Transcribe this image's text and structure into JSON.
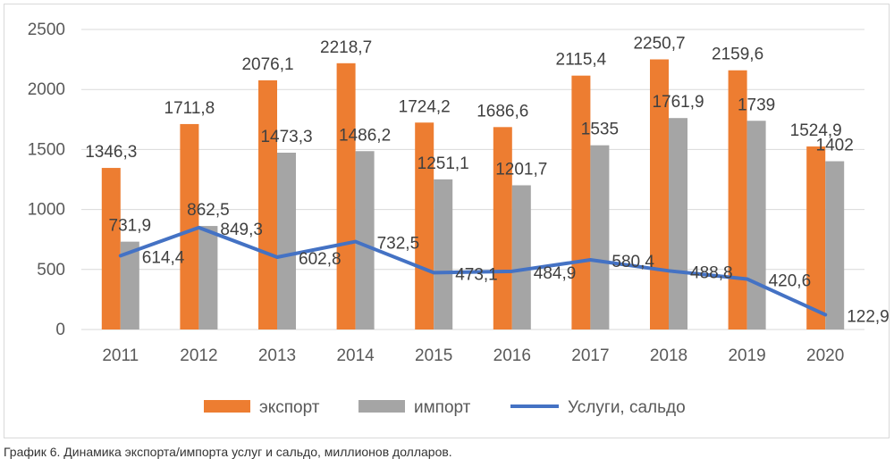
{
  "caption": "График 6. Динамика экспорта/импорта услуг и сальдо, миллионов долларов.",
  "chart_data": {
    "type": "bar",
    "categories": [
      "2011",
      "2012",
      "2013",
      "2014",
      "2015",
      "2016",
      "2017",
      "2018",
      "2019",
      "2020"
    ],
    "series": [
      {
        "name": "экспорт",
        "type": "bar",
        "color": "#ED7D31",
        "values": [
          1346.3,
          1711.8,
          2076.1,
          2218.7,
          1724.2,
          1686.6,
          2115.4,
          2250.7,
          2159.6,
          1524.9
        ],
        "labels": [
          "1346,3",
          "1711,8",
          "2076,1",
          "2218,7",
          "1724,2",
          "1686,6",
          "2115,4",
          "2250,7",
          "2159,6",
          "1524,9"
        ]
      },
      {
        "name": "импорт",
        "type": "bar",
        "color": "#A5A5A5",
        "values": [
          731.9,
          862.5,
          1473.3,
          1486.2,
          1251.1,
          1201.7,
          1535,
          1761.9,
          1739,
          1402
        ],
        "labels": [
          "731,9",
          "862,5",
          "1473,3",
          "1486,2",
          "1251,1",
          "1201,7",
          "1535",
          "1761,9",
          "1739",
          "1402"
        ]
      },
      {
        "name": "Услуги, сальдо",
        "type": "line",
        "color": "#4472C4",
        "values": [
          614.4,
          849.3,
          602.8,
          732.5,
          473.1,
          484.9,
          580.4,
          488.8,
          420.6,
          122.9
        ],
        "labels": [
          "614,4",
          "849,3",
          "602,8",
          "732,5",
          "473,1",
          "484,9",
          "580,4",
          "488,8",
          "420,6",
          "122,9"
        ]
      }
    ],
    "yticks": [
      "0",
      "500",
      "1000",
      "1500",
      "2000",
      "2500"
    ],
    "ylim": [
      0,
      2500
    ],
    "grid": true,
    "legend_position": "bottom"
  }
}
